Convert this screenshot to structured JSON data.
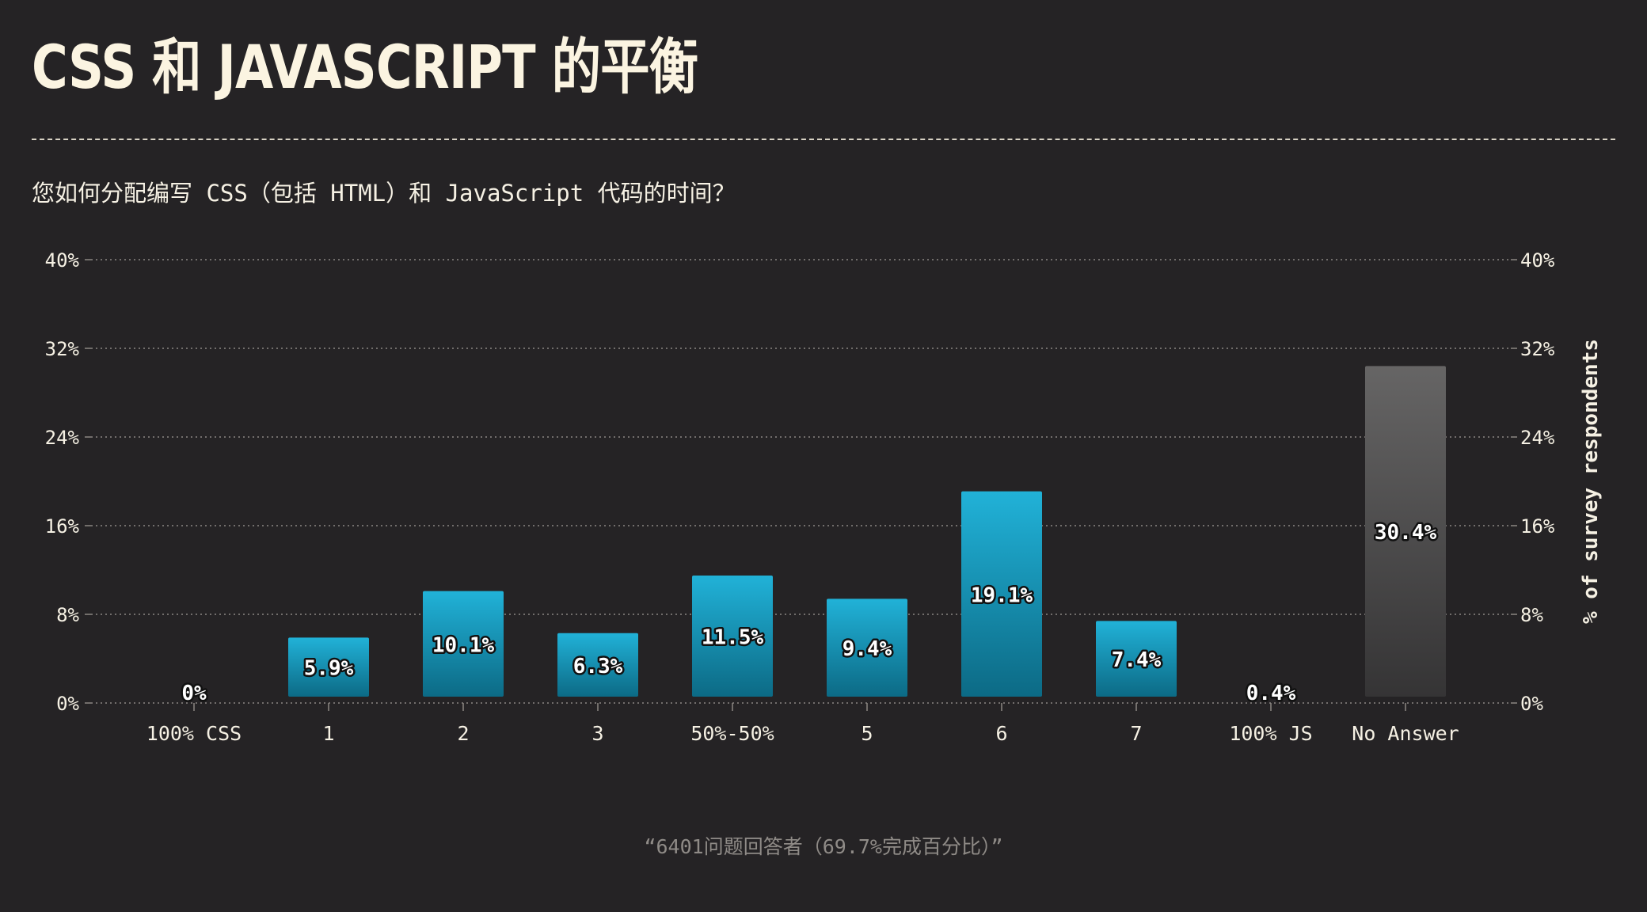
{
  "title": "CSS 和 JAVASCRIPT 的平衡",
  "question": "您如何分配编写 CSS（包括 HTML）和 JavaScript 代码的时间？",
  "footer": "“6401问题回答者（69.7%完成百分比）”",
  "colors": {
    "background": "#252325",
    "text": "#f6f1e4",
    "bar_top": "#21b2d8",
    "bar_bottom": "#0c6a85",
    "no_answer_top": "#666565",
    "no_answer_bottom": "#353435",
    "grid": "#8c8883"
  },
  "chart_data": {
    "type": "bar",
    "categories": [
      "100% CSS",
      "1",
      "2",
      "3",
      "50%-50%",
      "5",
      "6",
      "7",
      "100% JS",
      "No Answer"
    ],
    "values": [
      0,
      5.9,
      10.1,
      6.3,
      11.5,
      9.4,
      19.1,
      7.4,
      0.4,
      30.4
    ],
    "value_labels": [
      "0%",
      "5.9%",
      "10.1%",
      "6.3%",
      "11.5%",
      "9.4%",
      "19.1%",
      "7.4%",
      "0.4%",
      "30.4%"
    ],
    "ylim": [
      0,
      40
    ],
    "yticks": [
      0,
      8,
      16,
      24,
      32,
      40
    ],
    "ytick_labels": [
      "0%",
      "8%",
      "16%",
      "24%",
      "32%",
      "40%"
    ],
    "y2label": "% of survey respondents",
    "grid": true,
    "legend": "none"
  }
}
